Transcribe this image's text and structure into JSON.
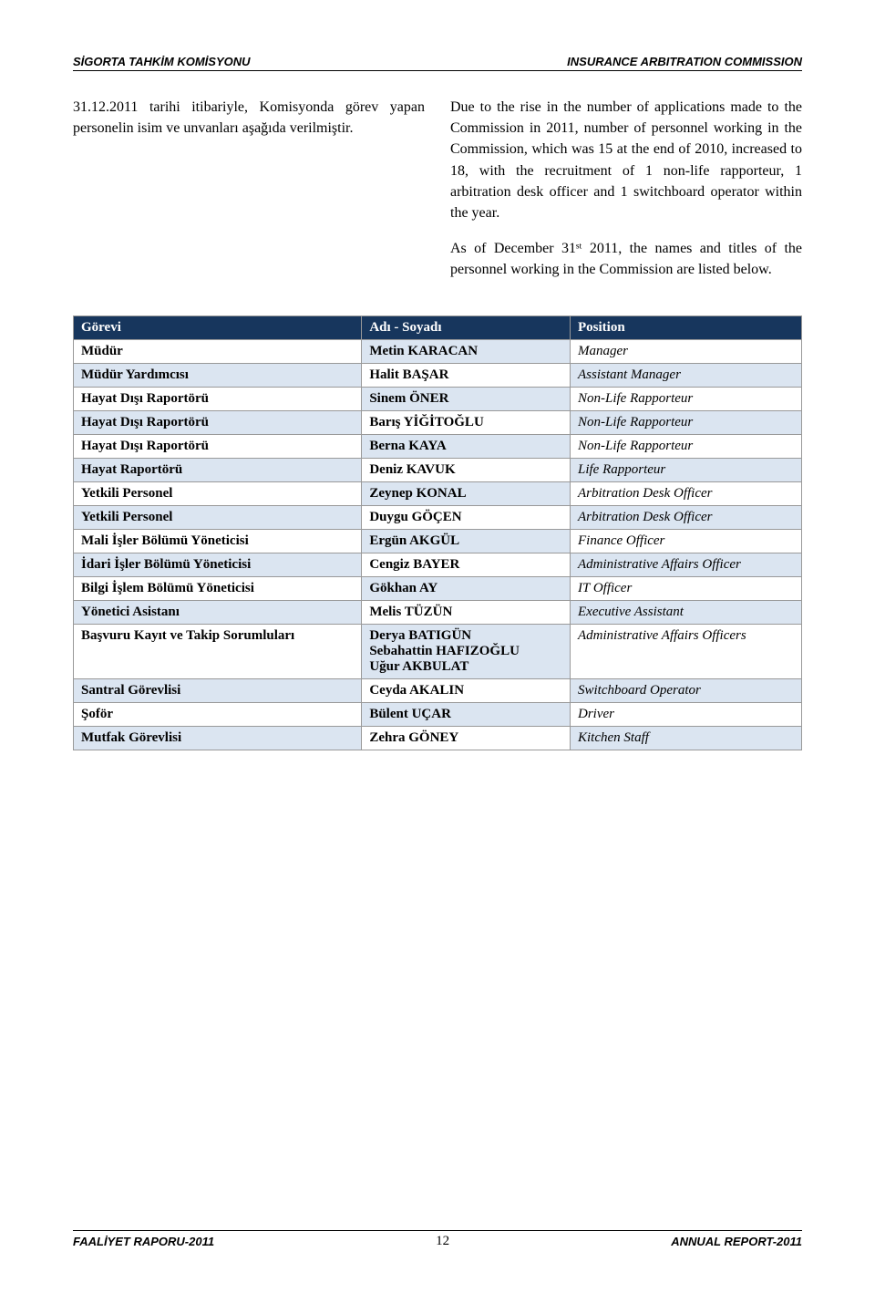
{
  "header": {
    "left": "SİGORTA TAHKİM KOMİSYONU",
    "right": "INSURANCE ARBITRATION COMMISSION"
  },
  "body": {
    "left_paras": [
      "31.12.2011 tarihi itibariyle, Komisyonda görev yapan personelin isim ve unvanları aşağıda verilmiştir."
    ],
    "right_paras": [
      "Due to the rise in the number of applications made to the Commission in 2011, number of personnel working in the Commission, which was 15 at the end of 2010, increased to 18, with the recruitment of 1 non-life rapporteur, 1 arbitration desk officer and 1 switchboard operator within the year.",
      "As of December 31ˢᵗ 2011, the names and titles of the personnel working in the Commission are listed below."
    ]
  },
  "table": {
    "headers": [
      "Görevi",
      "Adı - Soyadı",
      "Position"
    ],
    "rows": [
      [
        "Müdür",
        "Metin KARACAN",
        "Manager"
      ],
      [
        "Müdür Yardımcısı",
        "Halit BAŞAR",
        "Assistant Manager"
      ],
      [
        "Hayat Dışı Raportörü",
        "Sinem ÖNER",
        "Non-Life Rapporteur"
      ],
      [
        "Hayat Dışı Raportörü",
        "Barış YİĞİTOĞLU",
        "Non-Life Rapporteur"
      ],
      [
        "Hayat Dışı Raportörü",
        "Berna KAYA",
        "Non-Life Rapporteur"
      ],
      [
        "Hayat Raportörü",
        "Deniz KAVUK",
        "Life Rapporteur"
      ],
      [
        "Yetkili Personel",
        "Zeynep KONAL",
        "Arbitration Desk Officer"
      ],
      [
        "Yetkili Personel",
        "Duygu GÖÇEN",
        "Arbitration Desk Officer"
      ],
      [
        "Mali İşler Bölümü Yöneticisi",
        "Ergün AKGÜL",
        "Finance Officer"
      ],
      [
        "İdari İşler Bölümü Yöneticisi",
        "Cengiz BAYER",
        "Administrative Affairs Officer"
      ],
      [
        "Bilgi İşlem Bölümü Yöneticisi",
        "Gökhan AY",
        "IT Officer"
      ],
      [
        "Yönetici Asistanı",
        "Melis TÜZÜN",
        "Executive Assistant"
      ],
      [
        "Başvuru Kayıt ve Takip Sorumluları",
        "Derya BATIGÜN\nSebahattin HAFIZOĞLU\nUğur AKBULAT",
        "Administrative Affairs Officers"
      ],
      [
        "Santral Görevlisi",
        "Ceyda AKALIN",
        "Switchboard Operator"
      ],
      [
        "Şoför",
        "Bülent UÇAR",
        "Driver"
      ],
      [
        "Mutfak Görevlisi",
        "Zehra GÖNEY",
        "Kitchen Staff"
      ]
    ]
  },
  "footer": {
    "left": "FAALİYET RAPORU-2011",
    "page": "12",
    "right": "ANNUAL REPORT-2011"
  },
  "colors": {
    "table_header_bg": "#17365d",
    "table_header_fg": "#ffffff",
    "cell_shade": "#dbe5f1",
    "cell_plain": "#ffffff",
    "border": "#999999"
  }
}
